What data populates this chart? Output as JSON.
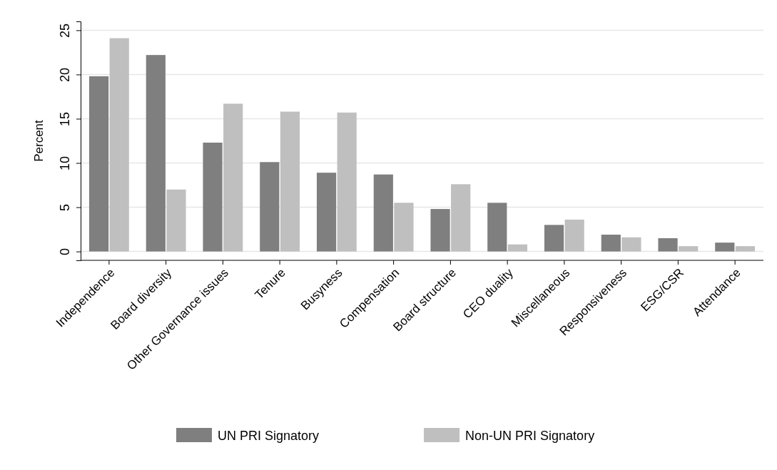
{
  "chart_data": {
    "type": "bar",
    "ylabel": "Percent",
    "categories": [
      "Independence",
      "Board diversity",
      "Other Governance issues",
      "Tenure",
      "Busyness",
      "Compensation",
      "Board structure",
      "CEO duality",
      "Miscellaneous",
      "Responsiveness",
      "ESG/CSR",
      "Attendance"
    ],
    "series": [
      {
        "name": "UN PRI Signatory",
        "color": "#7f7f7f",
        "values": [
          19.8,
          22.2,
          12.3,
          10.1,
          8.9,
          8.7,
          4.8,
          5.5,
          3.0,
          1.9,
          1.5,
          1.0
        ]
      },
      {
        "name": "Non-UN PRI Signatory",
        "color": "#bfbfbf",
        "values": [
          24.1,
          7.0,
          16.7,
          15.8,
          15.7,
          5.5,
          7.6,
          0.8,
          3.6,
          1.6,
          0.6,
          0.6
        ]
      }
    ],
    "ylim": [
      -1,
      26
    ],
    "yticks": [
      0,
      5,
      10,
      15,
      20,
      25
    ],
    "grid": "y",
    "legend": "bottom"
  }
}
